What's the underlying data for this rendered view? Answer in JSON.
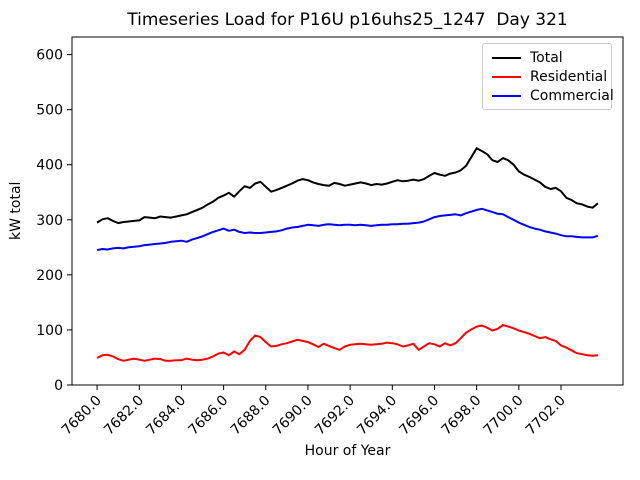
{
  "figure": {
    "title": "Timeseries Load for P16U p16uhs25_1247  Day 321",
    "xlabel": "Hour of Year",
    "ylabel": "kW total",
    "background": "#ffffff"
  },
  "chart_data": {
    "type": "line",
    "title": "Timeseries Load for P16U p16uhs25_1247  Day 321",
    "xlabel": "Hour of Year",
    "ylabel": "kW total",
    "grid": false,
    "legend_position": "upper right",
    "xlim": [
      7678.81,
      7704.94
    ],
    "ylim": [
      0,
      632
    ],
    "xticks": [
      7680,
      7682,
      7684,
      7686,
      7688,
      7690,
      7692,
      7694,
      7696,
      7698,
      7700,
      7702
    ],
    "xtick_labels": [
      "7680.0",
      "7682.0",
      "7684.0",
      "7686.0",
      "7688.0",
      "7690.0",
      "7692.0",
      "7694.0",
      "7696.0",
      "7698.0",
      "7700.0",
      "7702.0"
    ],
    "yticks": [
      0,
      100,
      200,
      300,
      400,
      500,
      600
    ],
    "ytick_labels": [
      "0",
      "100",
      "200",
      "300",
      "400",
      "500",
      "600"
    ],
    "x": [
      7680.0,
      7680.25,
      7680.5,
      7680.75,
      7681.0,
      7681.25,
      7681.5,
      7681.75,
      7682.0,
      7682.25,
      7682.5,
      7682.75,
      7683.0,
      7683.25,
      7683.5,
      7683.75,
      7684.0,
      7684.25,
      7684.5,
      7684.75,
      7685.0,
      7685.25,
      7685.5,
      7685.75,
      7686.0,
      7686.25,
      7686.5,
      7686.75,
      7687.0,
      7687.25,
      7687.5,
      7687.75,
      7688.0,
      7688.25,
      7688.5,
      7688.75,
      7689.0,
      7689.25,
      7689.5,
      7689.75,
      7690.0,
      7690.25,
      7690.5,
      7690.75,
      7691.0,
      7691.25,
      7691.5,
      7691.75,
      7692.0,
      7692.25,
      7692.5,
      7692.75,
      7693.0,
      7693.25,
      7693.5,
      7693.75,
      7694.0,
      7694.25,
      7694.5,
      7694.75,
      7695.0,
      7695.25,
      7695.5,
      7695.75,
      7696.0,
      7696.25,
      7696.5,
      7696.75,
      7697.0,
      7697.25,
      7697.5,
      7697.75,
      7698.0,
      7698.25,
      7698.5,
      7698.75,
      7699.0,
      7699.25,
      7699.5,
      7699.75,
      7700.0,
      7700.25,
      7700.5,
      7700.75,
      7701.0,
      7701.25,
      7701.5,
      7701.75,
      7702.0,
      7702.25,
      7702.5,
      7702.75,
      7703.0,
      7703.25,
      7703.5,
      7703.75
    ],
    "series": [
      {
        "name": "Total",
        "color": "#000000",
        "values": [
          295,
          301,
          303,
          298,
          294,
          296,
          297,
          298,
          299,
          305,
          304,
          303,
          306,
          305,
          304,
          306,
          308,
          310,
          314,
          318,
          322,
          328,
          333,
          340,
          344,
          349,
          342,
          352,
          361,
          358,
          366,
          369,
          360,
          351,
          354,
          358,
          362,
          366,
          371,
          374,
          372,
          368,
          365,
          363,
          362,
          367,
          365,
          362,
          364,
          366,
          368,
          366,
          363,
          365,
          364,
          366,
          369,
          372,
          370,
          371,
          373,
          371,
          374,
          380,
          385,
          382,
          380,
          384,
          386,
          390,
          398,
          414,
          430,
          425,
          419,
          408,
          405,
          412,
          408,
          400,
          388,
          382,
          378,
          373,
          368,
          360,
          356,
          358,
          352,
          340,
          336,
          330,
          328,
          324,
          322,
          330
        ]
      },
      {
        "name": "Residential",
        "color": "#ff0000",
        "values": [
          49,
          54,
          55,
          52,
          47,
          44,
          46,
          48,
          46,
          44,
          46,
          48,
          47,
          44,
          44,
          45,
          45,
          48,
          46,
          45,
          46,
          48,
          52,
          57,
          59,
          54,
          61,
          56,
          64,
          80,
          90,
          87,
          78,
          70,
          71,
          74,
          76,
          79,
          82,
          80,
          78,
          74,
          69,
          75,
          71,
          67,
          64,
          70,
          73,
          74,
          75,
          74,
          73,
          74,
          75,
          77,
          76,
          74,
          70,
          72,
          75,
          64,
          70,
          76,
          74,
          70,
          76,
          72,
          76,
          85,
          95,
          101,
          106,
          108,
          104,
          99,
          102,
          109,
          106,
          103,
          99,
          96,
          93,
          89,
          85,
          87,
          83,
          80,
          72,
          68,
          63,
          58,
          56,
          54,
          53,
          54
        ]
      },
      {
        "name": "Commercial",
        "color": "#0000ff",
        "values": [
          245,
          247,
          246,
          248,
          249,
          248,
          250,
          251,
          252,
          254,
          255,
          256,
          257,
          258,
          260,
          261,
          262,
          260,
          264,
          267,
          270,
          274,
          278,
          281,
          284,
          280,
          282,
          278,
          276,
          277,
          276,
          276,
          277,
          278,
          279,
          281,
          284,
          286,
          287,
          289,
          291,
          290,
          289,
          291,
          292,
          291,
          290,
          291,
          291,
          290,
          291,
          290,
          289,
          290,
          291,
          291,
          292,
          292,
          293,
          293,
          294,
          295,
          297,
          301,
          305,
          307,
          308,
          309,
          310,
          308,
          312,
          315,
          318,
          320,
          317,
          314,
          311,
          310,
          305,
          300,
          295,
          291,
          287,
          284,
          282,
          279,
          277,
          275,
          272,
          270,
          270,
          269,
          268,
          268,
          268,
          271
        ]
      }
    ]
  }
}
